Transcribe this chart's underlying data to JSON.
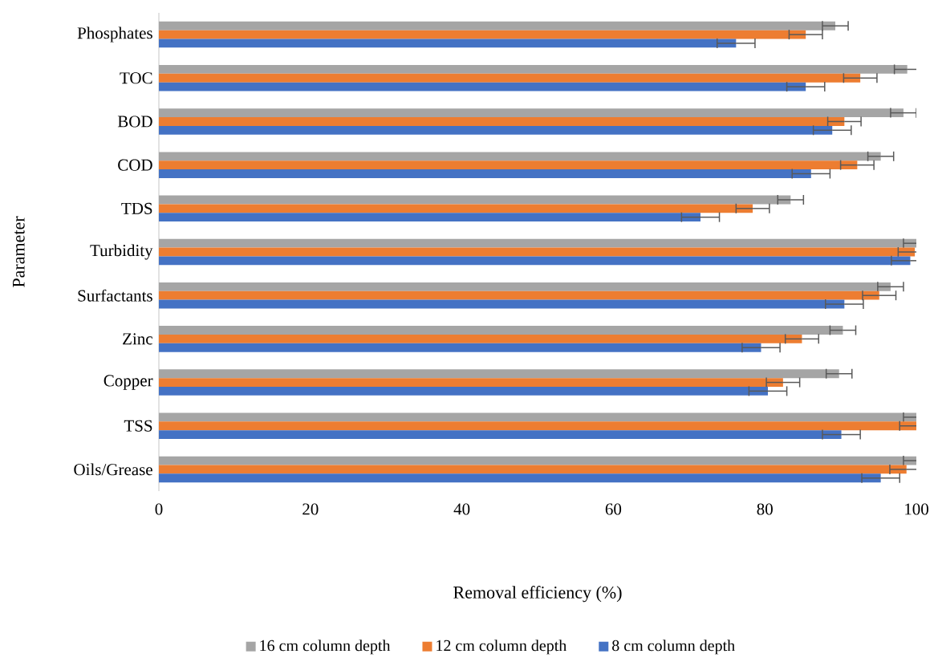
{
  "chart_data": {
    "type": "bar",
    "orientation": "horizontal",
    "xlabel": "Removal efficiency (%)",
    "ylabel": "Parameter",
    "categories": [
      "Phosphates",
      "TOC",
      "BOD",
      "COD",
      "TDS",
      "Turbidity",
      "Surfactants",
      "Zinc",
      "Copper",
      "TSS",
      "Oils/Grease"
    ],
    "series": [
      {
        "name": "16 cm column depth",
        "color": "#a5a5a5",
        "values": [
          89.3,
          98.8,
          98.3,
          95.3,
          83.4,
          100,
          96.6,
          90.3,
          89.8,
          100,
          100
        ],
        "errors": [
          1.7,
          1.7,
          1.7,
          1.7,
          1.7,
          1.7,
          1.7,
          1.7,
          1.7,
          1.7,
          1.7
        ]
      },
      {
        "name": "12 cm column depth",
        "color": "#ed7d31",
        "values": [
          85.4,
          92.6,
          90.5,
          92.2,
          78.4,
          99.8,
          95.1,
          84.9,
          82.4,
          100,
          98.7
        ],
        "errors": [
          2.2,
          2.2,
          2.2,
          2.2,
          2.2,
          2.2,
          2.2,
          2.2,
          2.2,
          2.2,
          2.2
        ]
      },
      {
        "name": "8 cm column depth",
        "color": "#4472c4",
        "values": [
          76.2,
          85.4,
          88.9,
          86.1,
          71.5,
          99.2,
          90.5,
          79.5,
          80.4,
          90.1,
          95.3
        ],
        "errors": [
          2.5,
          2.5,
          2.5,
          2.5,
          2.5,
          2.5,
          2.5,
          2.5,
          2.5,
          2.5,
          2.5
        ]
      }
    ],
    "xlim": [
      0,
      100
    ],
    "xticks": [
      0,
      20,
      40,
      60,
      80,
      100
    ],
    "grid": false,
    "legend": "bottom"
  }
}
